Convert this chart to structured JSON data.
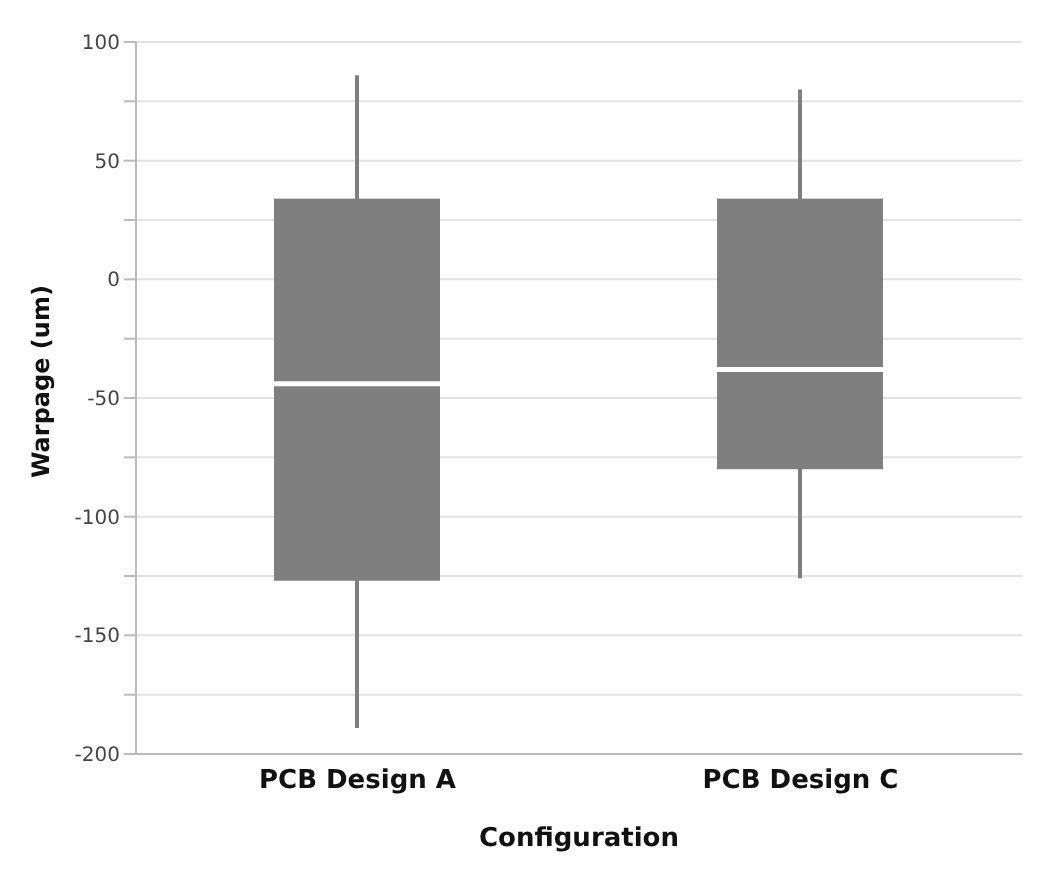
{
  "chart_data": {
    "type": "box",
    "xlabel": "Configuration",
    "ylabel": "Warpage (um)",
    "categories": [
      "PCB Design A",
      "PCB Design C"
    ],
    "series": [
      {
        "color": "#7f7f7f",
        "boxes": [
          {
            "low": -189,
            "q1": -127,
            "median": -44,
            "q3": 34,
            "high": 86
          },
          {
            "low": -126,
            "q1": -80,
            "median": -38,
            "q3": 34,
            "high": 80
          }
        ]
      }
    ],
    "ylim": [
      -200,
      100
    ],
    "yticks": [
      -200,
      {
        "value": -175,
        "label": null
      },
      -150,
      {
        "value": -125,
        "label": null
      },
      -100,
      {
        "value": -75,
        "label": null
      },
      -50,
      {
        "value": -25,
        "label": null
      },
      0,
      {
        "value": 25,
        "label": null
      },
      50,
      {
        "value": 75,
        "label": null
      },
      100
    ],
    "grid": "y"
  }
}
